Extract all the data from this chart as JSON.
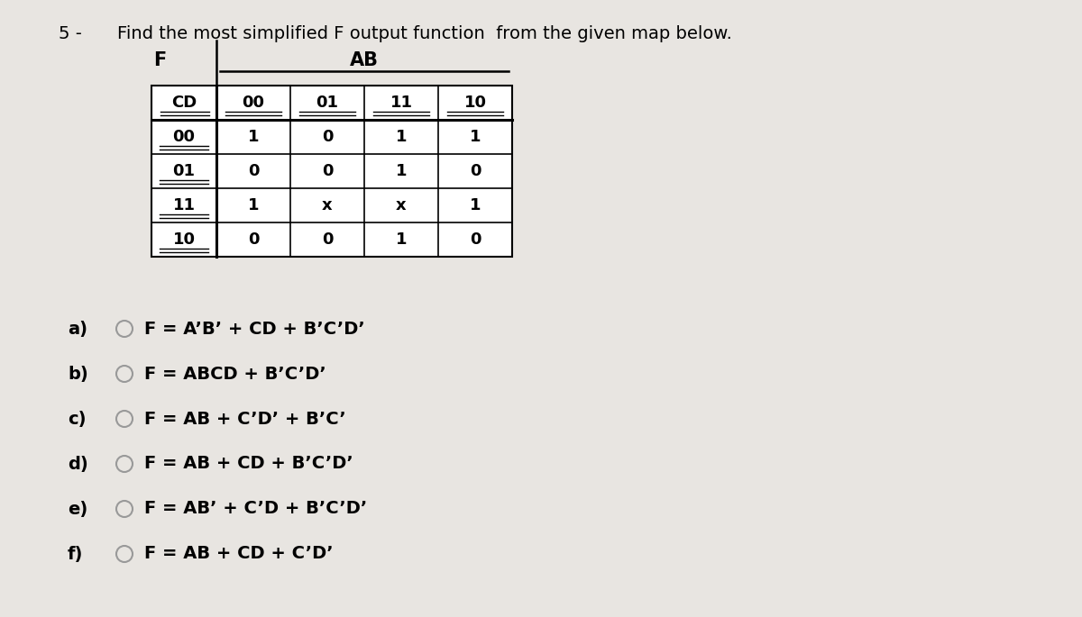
{
  "title_number": "5 -",
  "title_text": "Find the most simplified F output function  from the given map below.",
  "bg_color": "#e8e5e1",
  "table_cd_labels": [
    "00",
    "01",
    "11",
    "10"
  ],
  "table_ab_labels": [
    "00",
    "01",
    "11",
    "10"
  ],
  "table_values": [
    [
      "1",
      "0",
      "1",
      "1"
    ],
    [
      "0",
      "0",
      "1",
      "0"
    ],
    [
      "1",
      "x",
      "x",
      "1"
    ],
    [
      "0",
      "0",
      "1",
      "0"
    ]
  ],
  "f_label": "F",
  "ab_label": "AB",
  "cd_label": "CD",
  "options": [
    {
      "letter": "a)",
      "formula": "F = A’B’ + CD + B’C’D’"
    },
    {
      "letter": "b)",
      "formula": "F = ABCD + B’C’D’"
    },
    {
      "letter": "c)",
      "formula": "F = AB + C’D’ + B’C’"
    },
    {
      "letter": "d)",
      "formula": "F = AB + CD + B’C’D’"
    },
    {
      "letter": "e)",
      "formula": "F = AB’ + C’D + B’C’D’"
    },
    {
      "letter": "f)",
      "formula": "F = AB + CD + C’D’"
    }
  ]
}
